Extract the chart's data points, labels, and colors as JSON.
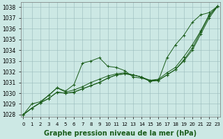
{
  "xlabel": "Graphe pression niveau de la mer (hPa)",
  "bg_color": "#cce8e4",
  "grid_color": "#99bbbb",
  "line_color": "#1a5c1a",
  "x_ticks": [
    0,
    1,
    2,
    3,
    4,
    5,
    6,
    7,
    8,
    9,
    10,
    11,
    12,
    13,
    14,
    15,
    16,
    17,
    18,
    19,
    20,
    21,
    22,
    23
  ],
  "ylim": [
    1027.8,
    1038.5
  ],
  "xlim": [
    -0.3,
    23.3
  ],
  "yticks": [
    1028,
    1029,
    1030,
    1031,
    1032,
    1033,
    1034,
    1035,
    1036,
    1037,
    1038
  ],
  "series": [
    [
      1028.0,
      1028.6,
      1029.1,
      1029.8,
      1030.5,
      1030.2,
      1030.8,
      1032.8,
      1033.0,
      1033.3,
      1032.5,
      1032.4,
      1032.1,
      1031.5,
      1031.4,
      1031.2,
      1031.2,
      1033.3,
      1034.5,
      1035.4,
      1036.6,
      1037.3,
      1037.5,
      1038.1
    ],
    [
      1028.0,
      1029.0,
      1029.2,
      1029.8,
      1030.5,
      1030.1,
      1030.3,
      1030.6,
      1031.0,
      1031.3,
      1031.6,
      1031.8,
      1031.9,
      1031.7,
      1031.5,
      1031.2,
      1031.3,
      1031.9,
      1032.4,
      1033.4,
      1034.5,
      1035.8,
      1037.3,
      1038.1
    ],
    [
      1028.0,
      1028.6,
      1029.1,
      1029.5,
      1030.1,
      1030.0,
      1030.1,
      1030.4,
      1030.7,
      1031.0,
      1031.4,
      1031.7,
      1031.8,
      1031.7,
      1031.5,
      1031.1,
      1031.2,
      1031.7,
      1032.2,
      1033.0,
      1034.0,
      1035.5,
      1037.0,
      1038.1
    ],
    [
      1028.0,
      1028.6,
      1029.1,
      1029.5,
      1030.1,
      1030.0,
      1030.1,
      1030.4,
      1030.7,
      1031.0,
      1031.4,
      1031.7,
      1031.8,
      1031.7,
      1031.5,
      1031.1,
      1031.2,
      1031.7,
      1032.2,
      1033.1,
      1034.2,
      1035.7,
      1037.2,
      1038.1
    ]
  ],
  "xlabel_fontsize": 7,
  "xtick_fontsize": 5,
  "ytick_fontsize": 5.5
}
